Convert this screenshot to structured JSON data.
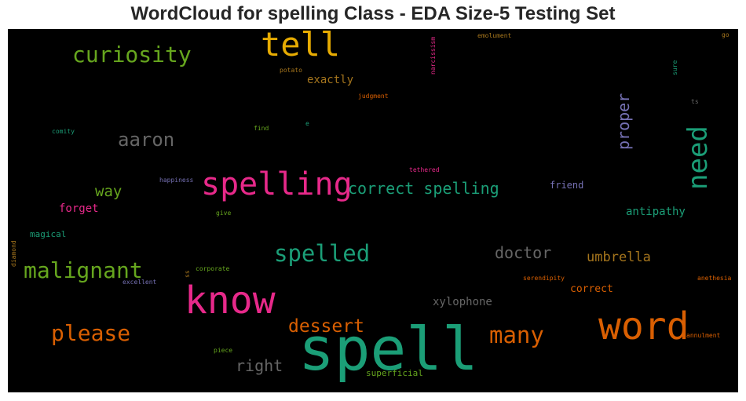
{
  "title": "WordCloud for spelling Class - EDA Size-5 Testing Set",
  "colors": {
    "teal": "#1b9e77",
    "orange": "#d95f02",
    "purple": "#7570b3",
    "pink": "#e7298a",
    "green": "#66a61e",
    "gold": "#e6ab02",
    "brown": "#a6761d",
    "gray": "#666666"
  },
  "words": [
    {
      "text": "spell",
      "color": "teal"
    },
    {
      "text": "know",
      "color": "pink"
    },
    {
      "text": "word",
      "color": "orange"
    },
    {
      "text": "spelling",
      "color": "pink"
    },
    {
      "text": "tell",
      "color": "gold"
    },
    {
      "text": "need",
      "color": "teal"
    },
    {
      "text": "curiosity",
      "color": "green"
    },
    {
      "text": "spelled",
      "color": "teal"
    },
    {
      "text": "malignant",
      "color": "green"
    },
    {
      "text": "please",
      "color": "orange"
    },
    {
      "text": "many",
      "color": "orange"
    },
    {
      "text": "aaron",
      "color": "gray"
    },
    {
      "text": "correct spelling",
      "color": "teal"
    },
    {
      "text": "dessert",
      "color": "orange"
    },
    {
      "text": "doctor",
      "color": "gray"
    },
    {
      "text": "proper",
      "color": "purple"
    },
    {
      "text": "right",
      "color": "gray"
    },
    {
      "text": "umbrella",
      "color": "brown"
    },
    {
      "text": "way",
      "color": "green"
    },
    {
      "text": "xylophone",
      "color": "gray"
    },
    {
      "text": "antipathy",
      "color": "teal"
    },
    {
      "text": "exactly",
      "color": "brown"
    },
    {
      "text": "forget",
      "color": "pink"
    },
    {
      "text": "correct",
      "color": "orange"
    },
    {
      "text": "superficial",
      "color": "green"
    },
    {
      "text": "friend",
      "color": "purple"
    },
    {
      "text": "magical",
      "color": "teal"
    },
    {
      "text": "narcissism",
      "color": "pink"
    },
    {
      "text": "emolument",
      "color": "brown"
    },
    {
      "text": "potato",
      "color": "brown"
    },
    {
      "text": "judgment",
      "color": "orange"
    },
    {
      "text": "comity",
      "color": "teal"
    },
    {
      "text": "find",
      "color": "green"
    },
    {
      "text": "e",
      "color": "teal"
    },
    {
      "text": "happiness",
      "color": "purple"
    },
    {
      "text": "tethered",
      "color": "pink"
    },
    {
      "text": "give",
      "color": "green"
    },
    {
      "text": "diamond",
      "color": "brown"
    },
    {
      "text": "excellent",
      "color": "purple"
    },
    {
      "text": "ss",
      "color": "brown"
    },
    {
      "text": "corporate",
      "color": "green"
    },
    {
      "text": "serendipity",
      "color": "orange"
    },
    {
      "text": "anethesia",
      "color": "orange"
    },
    {
      "text": "annulment",
      "color": "orange"
    },
    {
      "text": "piece",
      "color": "green"
    },
    {
      "text": "sure",
      "color": "teal"
    },
    {
      "text": "ts",
      "color": "gray"
    },
    {
      "text": "go",
      "color": "brown"
    }
  ]
}
